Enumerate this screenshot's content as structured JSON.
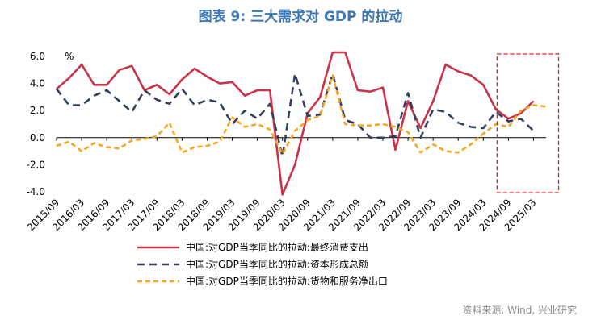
{
  "title": "图表 9:  三大需求对 GDP 的拉动",
  "source": "资料来源: Wind, 兴业研究",
  "chart_data": {
    "type": "line",
    "unit": "%",
    "ylim": [
      -4,
      6
    ],
    "yticks": [
      "6.0",
      "4.0",
      "2.0",
      "0.0",
      "-2.0",
      "-4.0"
    ],
    "ytick_values": [
      6,
      4,
      2,
      0,
      -2,
      -4
    ],
    "xtick_labels": [
      "2015/09",
      "2016/03",
      "2016/09",
      "2017/03",
      "2017/09",
      "2018/03",
      "2018/09",
      "2019/03",
      "2019/09",
      "2020/03",
      "2020/09",
      "2021/03",
      "2021/09",
      "2022/03",
      "2022/09",
      "2023/03",
      "2023/09",
      "2024/03",
      "2024/09",
      "2025/03"
    ],
    "x": [
      "2015/09",
      "2015/12",
      "2016/03",
      "2016/06",
      "2016/09",
      "2016/12",
      "2017/03",
      "2017/06",
      "2017/09",
      "2017/12",
      "2018/03",
      "2018/06",
      "2018/09",
      "2018/12",
      "2019/03",
      "2019/06",
      "2019/09",
      "2019/12",
      "2020/03",
      "2020/06",
      "2020/09",
      "2020/12",
      "2021/03",
      "2021/06",
      "2021/09",
      "2021/12",
      "2022/03",
      "2022/06",
      "2022/09",
      "2022/12",
      "2023/03",
      "2023/06",
      "2023/09",
      "2023/12",
      "2024/03",
      "2024/06",
      "2024/09",
      "2024/12",
      "2025/03",
      "2025/06"
    ],
    "series": [
      {
        "name": "中国:对GDP当季同比的拉动:最终消费支出",
        "color": "#c8334a",
        "dash": "solid",
        "values": [
          3.6,
          4.4,
          5.4,
          3.9,
          3.9,
          5.0,
          5.3,
          3.5,
          3.9,
          3.2,
          4.3,
          5.1,
          4.5,
          4.0,
          4.1,
          3.1,
          3.5,
          3.5,
          -4.2,
          -2.0,
          1.8,
          3.0,
          6.3,
          6.3,
          3.5,
          3.4,
          3.7,
          -0.9,
          2.7,
          0.7,
          2.7,
          5.4,
          4.9,
          4.6,
          3.9,
          2.1,
          1.4,
          1.8,
          2.7,
          null
        ]
      },
      {
        "name": "中国:对GDP当季同比的拉动:资本形成总额",
        "color": "#34405e",
        "dash": "dashed",
        "values": [
          3.6,
          2.4,
          2.4,
          3.1,
          3.5,
          2.7,
          1.9,
          3.5,
          2.8,
          2.5,
          3.6,
          2.4,
          2.8,
          2.6,
          1.0,
          2.0,
          1.4,
          2.5,
          -1.4,
          4.7,
          1.6,
          1.7,
          4.7,
          1.3,
          1.0,
          0.0,
          0.0,
          0.1,
          3.3,
          0.0,
          2.1,
          1.9,
          1.1,
          0.8,
          0.7,
          1.9,
          1.2,
          1.4,
          0.5,
          null
        ]
      },
      {
        "name": "中国:对GDP当季同比的拉动:货物和服务净出口",
        "color": "#f5a623",
        "dash": "dotted",
        "values": [
          -0.6,
          -0.3,
          -1.0,
          -0.4,
          -0.7,
          -0.8,
          -0.2,
          -0.1,
          0.1,
          1.1,
          -1.1,
          -0.7,
          -0.6,
          -0.3,
          1.5,
          0.8,
          1.0,
          0.6,
          -1.2,
          0.5,
          1.3,
          1.6,
          4.6,
          1.0,
          0.9,
          0.9,
          1.0,
          0.8,
          0.4,
          -1.1,
          -0.5,
          -1.0,
          -1.1,
          -0.5,
          0.3,
          1.0,
          0.8,
          2.0,
          2.4,
          2.3
        ]
      }
    ],
    "highlight_range": [
      "2024/09",
      "2025/03"
    ],
    "grid": false,
    "legend_position": "bottom"
  }
}
